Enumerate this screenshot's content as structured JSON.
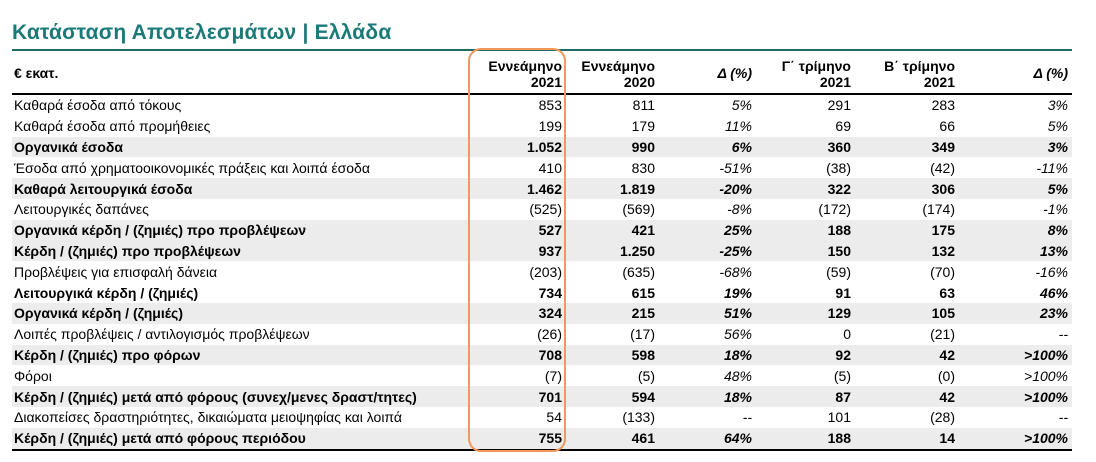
{
  "title": "Κατάσταση Αποτελεσμάτων | Ελλάδα",
  "columns": {
    "label": "€ εκατ.",
    "n9m21_l1": "Εννεάμηνο",
    "n9m21_l2": "2021",
    "n9m20_l1": "Εννεάμηνο",
    "n9m20_l2": "2020",
    "d1": "Δ (%)",
    "q3_l1": "Γ΄ τρίμηνο",
    "q3_l2": "2021",
    "q2_l1": "Β΄ τρίμηνο",
    "q2_l2": "2021",
    "d2": "Δ (%)"
  },
  "rows": [
    {
      "label": "Καθαρά έσοδα από τόκους",
      "n9m21": "853",
      "n9m20": "811",
      "d1": "5%",
      "q3": "291",
      "q2": "283",
      "d2": "3%",
      "bold": false,
      "shaded": false
    },
    {
      "label": "Καθαρά έσοδα από προμήθειες",
      "n9m21": "199",
      "n9m20": "179",
      "d1": "11%",
      "q3": "69",
      "q2": "66",
      "d2": "5%",
      "bold": false,
      "shaded": false
    },
    {
      "label": "Οργανικά έσοδα",
      "n9m21": "1.052",
      "n9m20": "990",
      "d1": "6%",
      "q3": "360",
      "q2": "349",
      "d2": "3%",
      "bold": true,
      "shaded": true
    },
    {
      "label": "Έσοδα από χρηματοοικονομικές πράξεις και λοιπά έσοδα",
      "n9m21": "410",
      "n9m20": "830",
      "d1": "-51%",
      "q3": "(38)",
      "q2": "(42)",
      "d2": "-11%",
      "bold": false,
      "shaded": false
    },
    {
      "label": "Καθαρά λειτουργικά έσοδα",
      "n9m21": "1.462",
      "n9m20": "1.819",
      "d1": "-20%",
      "q3": "322",
      "q2": "306",
      "d2": "5%",
      "bold": true,
      "shaded": true
    },
    {
      "label": "Λειτουργικές δαπάνες",
      "n9m21": "(525)",
      "n9m20": "(569)",
      "d1": "-8%",
      "q3": "(172)",
      "q2": "(174)",
      "d2": "-1%",
      "bold": false,
      "shaded": false
    },
    {
      "label": "Οργανικά κέρδη / (ζημιές) προ προβλέψεων",
      "n9m21": "527",
      "n9m20": "421",
      "d1": "25%",
      "q3": "188",
      "q2": "175",
      "d2": "8%",
      "bold": true,
      "shaded": true
    },
    {
      "label": "Κέρδη / (ζημιές) προ προβλέψεων",
      "n9m21": "937",
      "n9m20": "1.250",
      "d1": "-25%",
      "q3": "150",
      "q2": "132",
      "d2": "13%",
      "bold": true,
      "shaded": true
    },
    {
      "label": "Προβλέψεις για επισφαλή δάνεια",
      "n9m21": "(203)",
      "n9m20": "(635)",
      "d1": "-68%",
      "q3": "(59)",
      "q2": "(70)",
      "d2": "-16%",
      "bold": false,
      "shaded": false
    },
    {
      "label": "Λειτουργικά κέρδη / (ζημιές)",
      "n9m21": "734",
      "n9m20": "615",
      "d1": "19%",
      "q3": "91",
      "q2": "63",
      "d2": "46%",
      "bold": true,
      "shaded": false
    },
    {
      "label": "Οργανικά κέρδη / (ζημιές)",
      "n9m21": "324",
      "n9m20": "215",
      "d1": "51%",
      "q3": "129",
      "q2": "105",
      "d2": "23%",
      "bold": true,
      "shaded": true
    },
    {
      "label": "Λοιπές προβλέψεις / αντιλογισμός προβλέψεων",
      "n9m21": "(26)",
      "n9m20": "(17)",
      "d1": "56%",
      "q3": "0",
      "q2": "(21)",
      "d2": "--",
      "bold": false,
      "shaded": false
    },
    {
      "label": "Κέρδη / (ζημιές) προ φόρων",
      "n9m21": "708",
      "n9m20": "598",
      "d1": "18%",
      "q3": "92",
      "q2": "42",
      "d2": ">100%",
      "bold": true,
      "shaded": true
    },
    {
      "label": "Φόροι",
      "n9m21": "(7)",
      "n9m20": "(5)",
      "d1": "48%",
      "q3": "(5)",
      "q2": "(0)",
      "d2": ">100%",
      "bold": false,
      "shaded": false
    },
    {
      "label": "Κέρδη / (ζημιές) μετά από φόρους (συνεχ/μενες δραστ/τητες)",
      "n9m21": "701",
      "n9m20": "594",
      "d1": "18%",
      "q3": "87",
      "q2": "42",
      "d2": ">100%",
      "bold": true,
      "shaded": true
    },
    {
      "label": "Διακοπείσες δραστηριότητες, δικαιώματα μειοψηφίας και λοιπά",
      "n9m21": "54",
      "n9m20": "(133)",
      "d1": "--",
      "q3": "101",
      "q2": "(28)",
      "d2": "--",
      "bold": false,
      "shaded": false
    },
    {
      "label": "Κέρδη / (ζημιές) μετά από φόρους περιόδου",
      "n9m21": "755",
      "n9m20": "461",
      "d1": "64%",
      "q3": "188",
      "q2": "14",
      "d2": ">100%",
      "bold": true,
      "shaded": true
    }
  ],
  "colors": {
    "title": "#1a7a78",
    "highlight_border": "#f2995a",
    "shaded_row": "#ececec"
  }
}
